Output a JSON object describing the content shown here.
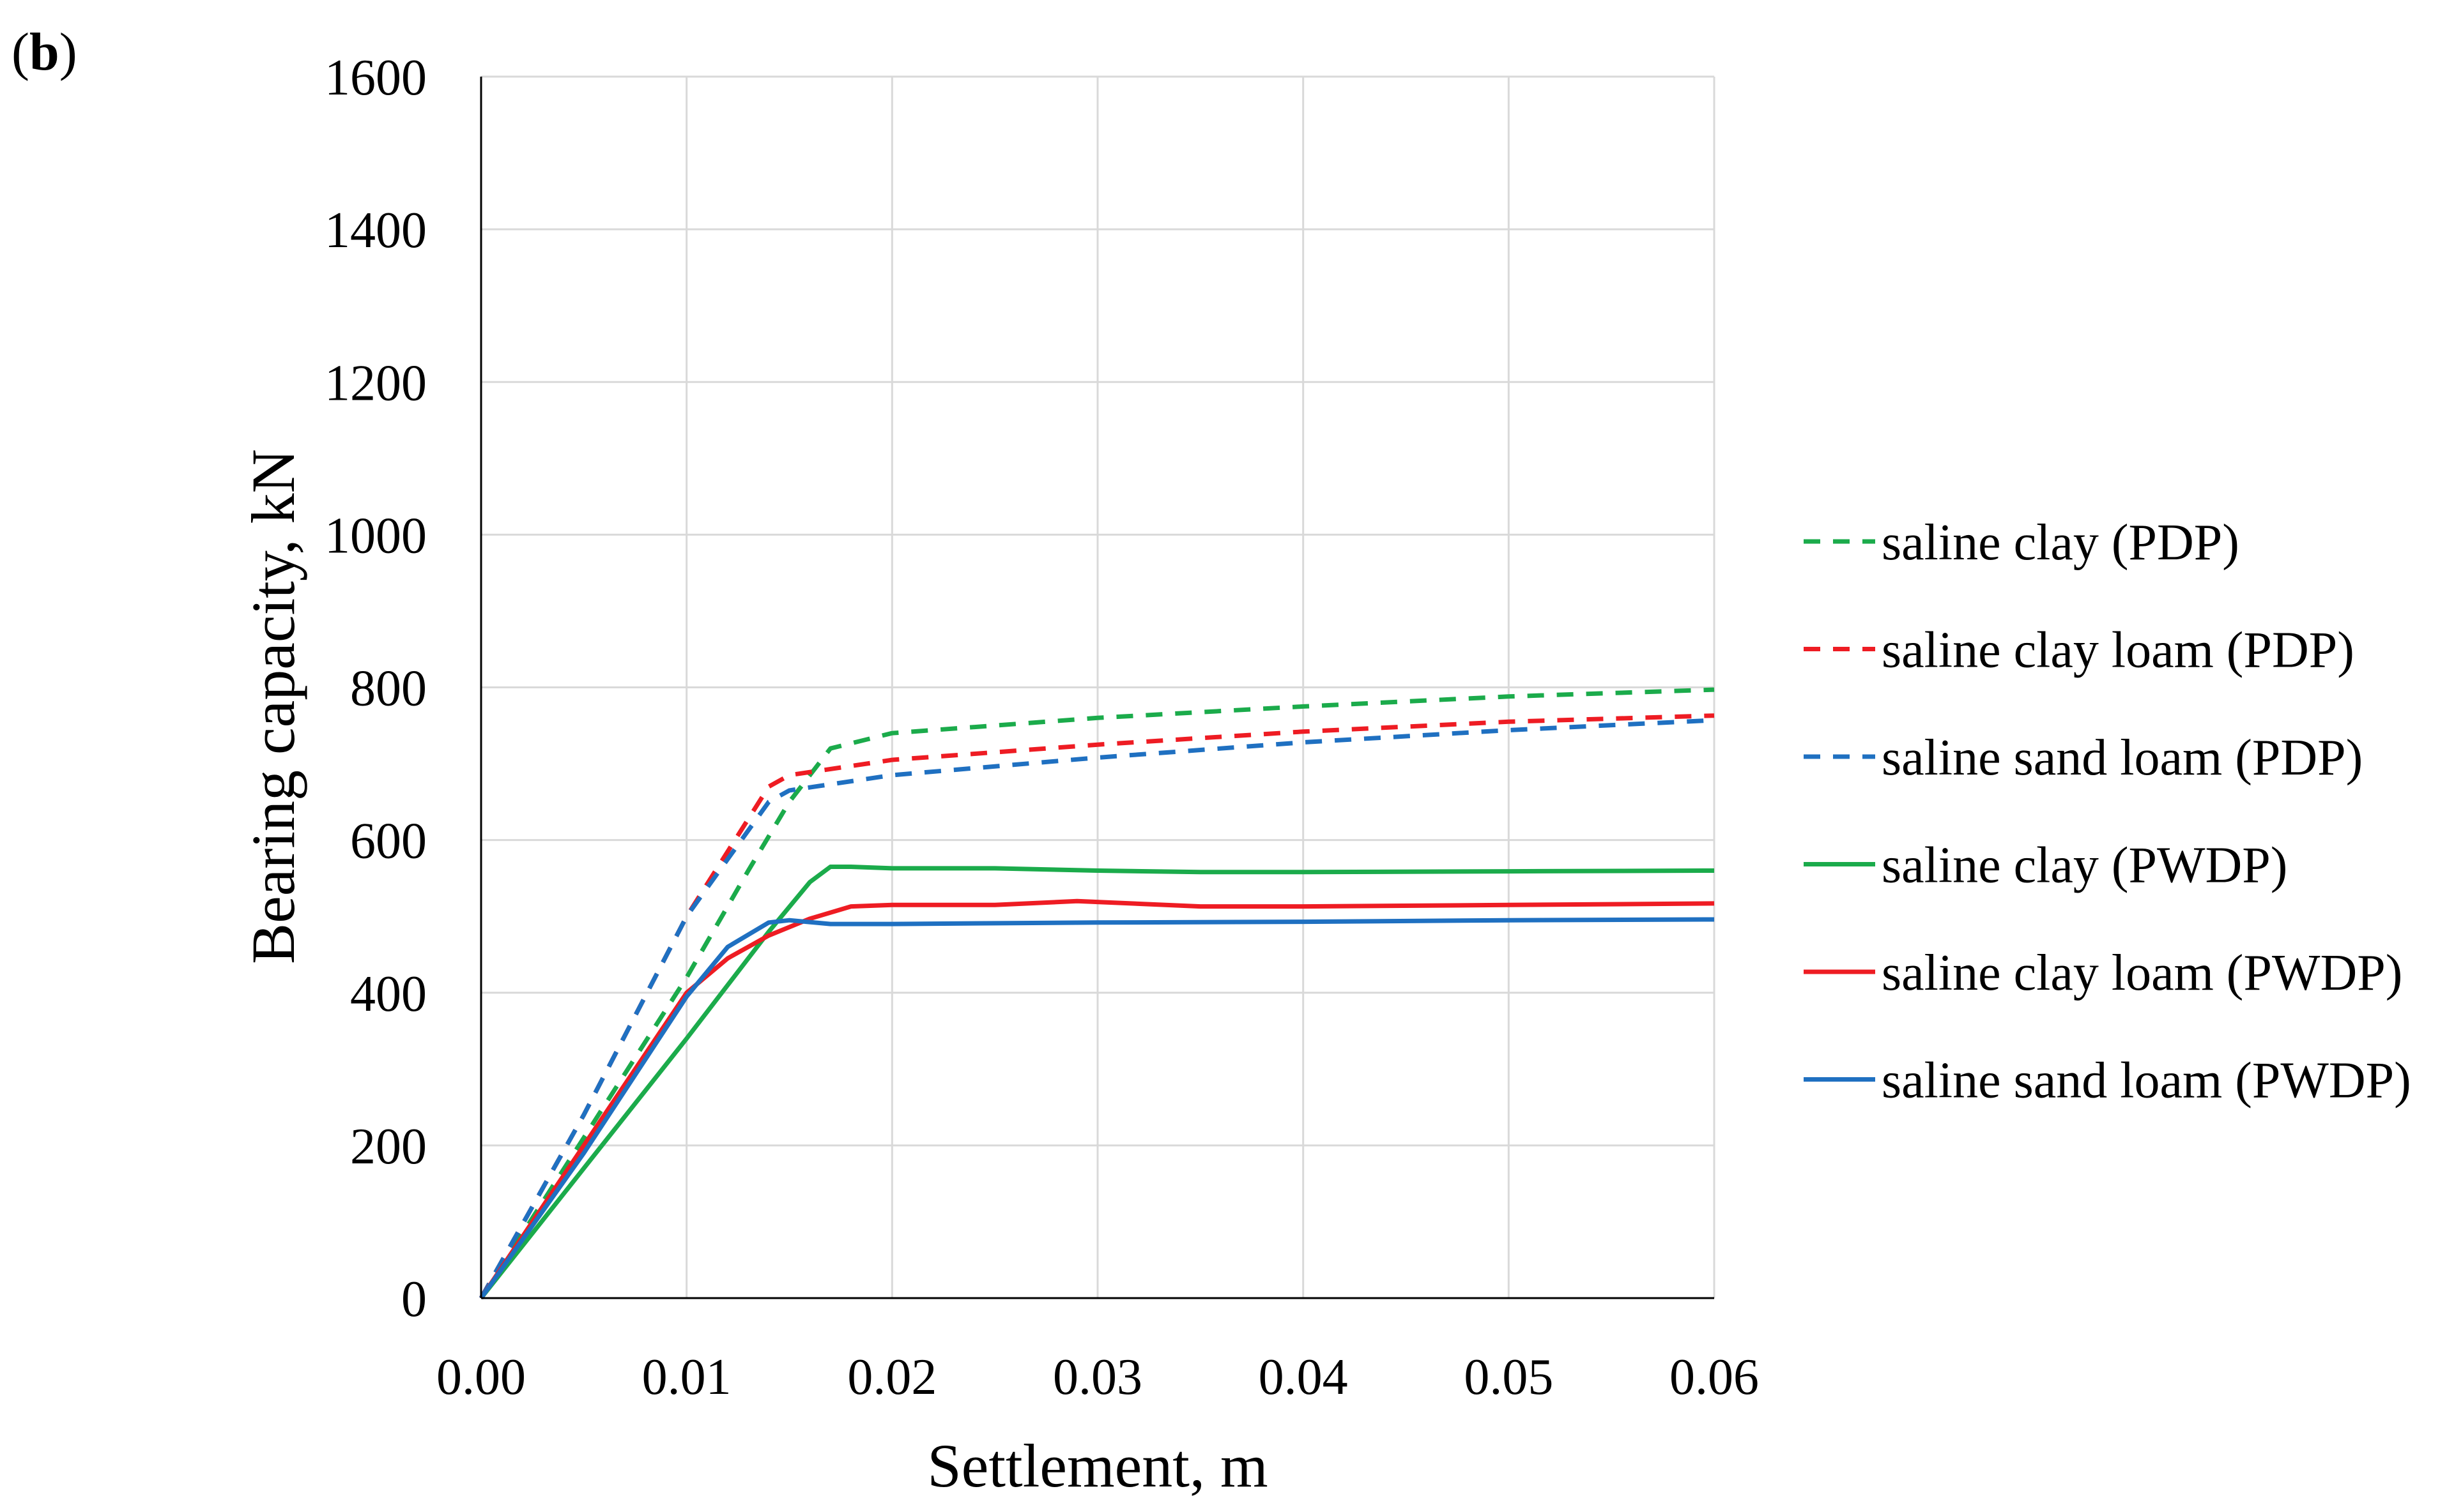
{
  "panel": {
    "open": "(",
    "letter": "b",
    "close": ")"
  },
  "chart_data": {
    "type": "line",
    "xlabel": "Settlement, m",
    "ylabel": "Bearing capacity, kN",
    "xlim": [
      0,
      0.06
    ],
    "ylim": [
      0,
      1600
    ],
    "xticks": [
      0,
      0.01,
      0.02,
      0.03,
      0.04,
      0.05,
      0.06
    ],
    "xtick_labels": [
      "0.00",
      "0.01",
      "0.02",
      "0.03",
      "0.04",
      "0.05",
      "0.06"
    ],
    "yticks": [
      0,
      200,
      400,
      600,
      800,
      1000,
      1200,
      1400,
      1600
    ],
    "ytick_labels": [
      "0",
      "200",
      "400",
      "600",
      "800",
      "1000",
      "1200",
      "1400",
      "1600"
    ],
    "grid": true,
    "legend_position": "right",
    "series": [
      {
        "name": "saline clay (PDP)",
        "color": "#1bab4b",
        "dash": "dashed",
        "x": [
          0,
          0.005,
          0.01,
          0.013,
          0.015,
          0.017,
          0.02,
          0.03,
          0.04,
          0.05,
          0.06
        ],
        "y": [
          0,
          210,
          420,
          560,
          650,
          720,
          740,
          760,
          775,
          788,
          797
        ]
      },
      {
        "name": "saline clay loam (PDP)",
        "color": "#ee1c23",
        "dash": "dashed",
        "x": [
          0,
          0.005,
          0.01,
          0.014,
          0.015,
          0.02,
          0.03,
          0.04,
          0.05,
          0.06
        ],
        "y": [
          0,
          240,
          500,
          670,
          685,
          705,
          725,
          742,
          755,
          763
        ]
      },
      {
        "name": "saline sand loam (PDP)",
        "color": "#1f70c1",
        "dash": "dashed",
        "x": [
          0,
          0.005,
          0.01,
          0.014,
          0.015,
          0.02,
          0.03,
          0.04,
          0.05,
          0.06
        ],
        "y": [
          0,
          240,
          500,
          650,
          665,
          685,
          708,
          728,
          744,
          757
        ]
      },
      {
        "name": "saline clay (PWDP)",
        "color": "#1bab4b",
        "dash": "solid",
        "x": [
          0,
          0.005,
          0.01,
          0.014,
          0.016,
          0.017,
          0.018,
          0.02,
          0.025,
          0.03,
          0.035,
          0.04,
          0.05,
          0.06
        ],
        "y": [
          0,
          170,
          340,
          480,
          545,
          565,
          565,
          563,
          563,
          560,
          558,
          558,
          559,
          560
        ]
      },
      {
        "name": "saline clay loam (PWDP)",
        "color": "#ee1c23",
        "dash": "solid",
        "x": [
          0,
          0.005,
          0.01,
          0.012,
          0.014,
          0.016,
          0.018,
          0.02,
          0.025,
          0.029,
          0.035,
          0.04,
          0.05,
          0.06
        ],
        "y": [
          0,
          200,
          400,
          445,
          475,
          497,
          513,
          515,
          515,
          520,
          513,
          513,
          515,
          517
        ]
      },
      {
        "name": "saline sand loam (PWDP)",
        "color": "#1f70c1",
        "dash": "solid",
        "x": [
          0,
          0.005,
          0.01,
          0.012,
          0.014,
          0.015,
          0.017,
          0.02,
          0.03,
          0.04,
          0.05,
          0.06
        ],
        "y": [
          0,
          190,
          395,
          460,
          492,
          495,
          490,
          490,
          492,
          493,
          495,
          496
        ]
      }
    ]
  }
}
